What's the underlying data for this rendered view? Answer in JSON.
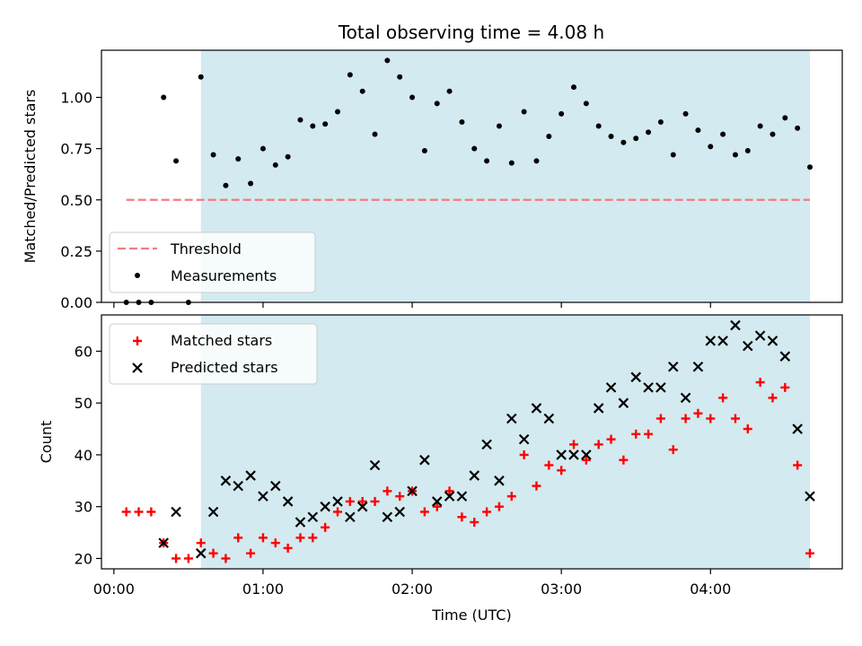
{
  "chart_data": [
    {
      "type": "scatter",
      "title": "Total observing time = 4.08 h",
      "xlabel": "",
      "ylabel": "Matched/Predicted stars",
      "xlim": [
        "-00:05",
        "04:53"
      ],
      "ylim": [
        0,
        1.23
      ],
      "yticks": [
        "0.00",
        "0.25",
        "0.50",
        "0.75",
        "1.00"
      ],
      "xticks": [
        "00:00",
        "01:00",
        "02:00",
        "03:00",
        "04:00"
      ],
      "shaded_span": [
        "00:35",
        "04:40"
      ],
      "shade_color": "#d3eaf0",
      "legend_position": "lower-left",
      "threshold": {
        "name": "Threshold",
        "value": 0.5,
        "x_range": [
          "00:05",
          "04:40"
        ],
        "color": "#f47c7c",
        "style": "dashed"
      },
      "series": [
        {
          "name": "Measurements",
          "color": "#000000",
          "marker": "dot",
          "points": [
            [
              "00:05",
              0.0
            ],
            [
              "00:10",
              0.0
            ],
            [
              "00:15",
              0.0
            ],
            [
              "00:20",
              1.0
            ],
            [
              "00:25",
              0.69
            ],
            [
              "00:30",
              0.0
            ],
            [
              "00:35",
              1.1
            ],
            [
              "00:40",
              0.72
            ],
            [
              "00:45",
              0.57
            ],
            [
              "00:50",
              0.7
            ],
            [
              "00:55",
              0.58
            ],
            [
              "01:00",
              0.75
            ],
            [
              "01:05",
              0.67
            ],
            [
              "01:10",
              0.71
            ],
            [
              "01:15",
              0.89
            ],
            [
              "01:20",
              0.86
            ],
            [
              "01:25",
              0.87
            ],
            [
              "01:30",
              0.93
            ],
            [
              "01:35",
              1.11
            ],
            [
              "01:40",
              1.03
            ],
            [
              "01:45",
              0.82
            ],
            [
              "01:50",
              1.18
            ],
            [
              "01:55",
              1.1
            ],
            [
              "02:00",
              1.0
            ],
            [
              "02:05",
              0.74
            ],
            [
              "02:10",
              0.97
            ],
            [
              "02:15",
              1.03
            ],
            [
              "02:20",
              0.88
            ],
            [
              "02:25",
              0.75
            ],
            [
              "02:30",
              0.69
            ],
            [
              "02:35",
              0.86
            ],
            [
              "02:40",
              0.68
            ],
            [
              "02:45",
              0.93
            ],
            [
              "02:50",
              0.69
            ],
            [
              "02:55",
              0.81
            ],
            [
              "03:00",
              0.92
            ],
            [
              "03:05",
              1.05
            ],
            [
              "03:10",
              0.97
            ],
            [
              "03:15",
              0.86
            ],
            [
              "03:20",
              0.81
            ],
            [
              "03:25",
              0.78
            ],
            [
              "03:30",
              0.8
            ],
            [
              "03:35",
              0.83
            ],
            [
              "03:40",
              0.88
            ],
            [
              "03:45",
              0.72
            ],
            [
              "03:50",
              0.92
            ],
            [
              "03:55",
              0.84
            ],
            [
              "04:00",
              0.76
            ],
            [
              "04:05",
              0.82
            ],
            [
              "04:10",
              0.72
            ],
            [
              "04:15",
              0.74
            ],
            [
              "04:20",
              0.86
            ],
            [
              "04:25",
              0.82
            ],
            [
              "04:30",
              0.9
            ],
            [
              "04:35",
              0.85
            ],
            [
              "04:40",
              0.66
            ]
          ]
        }
      ]
    },
    {
      "type": "scatter",
      "title": "",
      "xlabel": "Time (UTC)",
      "ylabel": "Count",
      "xlim": [
        "-00:05",
        "04:53"
      ],
      "ylim": [
        18,
        67
      ],
      "yticks": [
        "20",
        "30",
        "40",
        "50",
        "60"
      ],
      "xticks": [
        "00:00",
        "01:00",
        "02:00",
        "03:00",
        "04:00"
      ],
      "shaded_span": [
        "00:35",
        "04:40"
      ],
      "shade_color": "#d3eaf0",
      "legend_position": "upper-left",
      "series": [
        {
          "name": "Matched stars",
          "color": "#ff0000",
          "marker": "plus",
          "points": [
            [
              "00:05",
              29
            ],
            [
              "00:10",
              29
            ],
            [
              "00:15",
              29
            ],
            [
              "00:20",
              23
            ],
            [
              "00:25",
              20
            ],
            [
              "00:30",
              20
            ],
            [
              "00:35",
              23
            ],
            [
              "00:40",
              21
            ],
            [
              "00:45",
              20
            ],
            [
              "00:50",
              24
            ],
            [
              "00:55",
              21
            ],
            [
              "01:00",
              24
            ],
            [
              "01:05",
              23
            ],
            [
              "01:10",
              22
            ],
            [
              "01:15",
              24
            ],
            [
              "01:20",
              24
            ],
            [
              "01:25",
              26
            ],
            [
              "01:30",
              29
            ],
            [
              "01:35",
              31
            ],
            [
              "01:40",
              31
            ],
            [
              "01:45",
              31
            ],
            [
              "01:50",
              33
            ],
            [
              "01:55",
              32
            ],
            [
              "02:00",
              33
            ],
            [
              "02:05",
              29
            ],
            [
              "02:10",
              30
            ],
            [
              "02:15",
              33
            ],
            [
              "02:20",
              28
            ],
            [
              "02:25",
              27
            ],
            [
              "02:30",
              29
            ],
            [
              "02:35",
              30
            ],
            [
              "02:40",
              32
            ],
            [
              "02:45",
              40
            ],
            [
              "02:50",
              34
            ],
            [
              "02:55",
              38
            ],
            [
              "03:00",
              37
            ],
            [
              "03:05",
              42
            ],
            [
              "03:10",
              39
            ],
            [
              "03:15",
              42
            ],
            [
              "03:20",
              43
            ],
            [
              "03:25",
              39
            ],
            [
              "03:30",
              44
            ],
            [
              "03:35",
              44
            ],
            [
              "03:40",
              47
            ],
            [
              "03:45",
              41
            ],
            [
              "03:50",
              47
            ],
            [
              "03:55",
              48
            ],
            [
              "04:00",
              47
            ],
            [
              "04:05",
              51
            ],
            [
              "04:10",
              47
            ],
            [
              "04:15",
              45
            ],
            [
              "04:20",
              54
            ],
            [
              "04:25",
              51
            ],
            [
              "04:30",
              53
            ],
            [
              "04:35",
              38
            ],
            [
              "04:40",
              21
            ]
          ]
        },
        {
          "name": "Predicted stars",
          "color": "#000000",
          "marker": "x",
          "points": [
            [
              "00:20",
              23
            ],
            [
              "00:25",
              29
            ],
            [
              "00:35",
              21
            ],
            [
              "00:40",
              29
            ],
            [
              "00:45",
              35
            ],
            [
              "00:50",
              34
            ],
            [
              "00:55",
              36
            ],
            [
              "01:00",
              32
            ],
            [
              "01:05",
              34
            ],
            [
              "01:10",
              31
            ],
            [
              "01:15",
              27
            ],
            [
              "01:20",
              28
            ],
            [
              "01:25",
              30
            ],
            [
              "01:30",
              31
            ],
            [
              "01:35",
              28
            ],
            [
              "01:40",
              30
            ],
            [
              "01:45",
              38
            ],
            [
              "01:50",
              28
            ],
            [
              "01:55",
              29
            ],
            [
              "02:00",
              33
            ],
            [
              "02:05",
              39
            ],
            [
              "02:10",
              31
            ],
            [
              "02:15",
              32
            ],
            [
              "02:20",
              32
            ],
            [
              "02:25",
              36
            ],
            [
              "02:30",
              42
            ],
            [
              "02:35",
              35
            ],
            [
              "02:40",
              47
            ],
            [
              "02:45",
              43
            ],
            [
              "02:50",
              49
            ],
            [
              "02:55",
              47
            ],
            [
              "03:00",
              40
            ],
            [
              "03:05",
              40
            ],
            [
              "03:10",
              40
            ],
            [
              "03:15",
              49
            ],
            [
              "03:20",
              53
            ],
            [
              "03:25",
              50
            ],
            [
              "03:30",
              55
            ],
            [
              "03:35",
              53
            ],
            [
              "03:40",
              53
            ],
            [
              "03:45",
              57
            ],
            [
              "03:50",
              51
            ],
            [
              "03:55",
              57
            ],
            [
              "04:00",
              62
            ],
            [
              "04:05",
              62
            ],
            [
              "04:10",
              65
            ],
            [
              "04:15",
              61
            ],
            [
              "04:20",
              63
            ],
            [
              "04:25",
              62
            ],
            [
              "04:30",
              59
            ],
            [
              "04:35",
              45
            ],
            [
              "04:40",
              32
            ]
          ]
        }
      ]
    }
  ]
}
